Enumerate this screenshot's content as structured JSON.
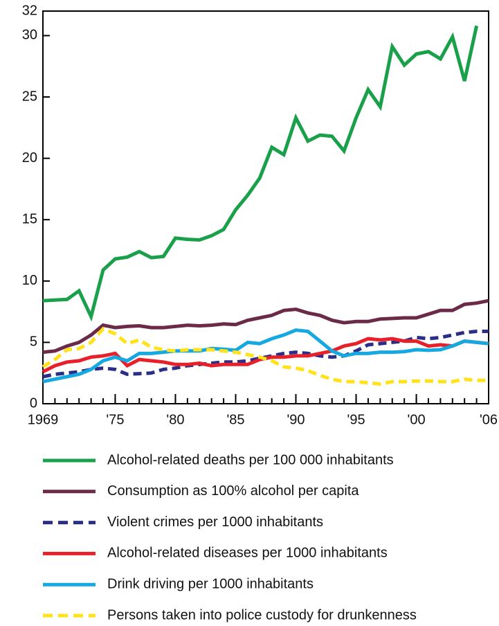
{
  "chart_data": {
    "type": "line",
    "x": [
      1969,
      1970,
      1971,
      1972,
      1973,
      1974,
      1975,
      1976,
      1977,
      1978,
      1979,
      1980,
      1981,
      1982,
      1983,
      1984,
      1985,
      1986,
      1987,
      1988,
      1989,
      1990,
      1991,
      1992,
      1993,
      1994,
      1995,
      1996,
      1997,
      1998,
      1999,
      2000,
      2001,
      2002,
      2003,
      2004,
      2005,
      2006
    ],
    "xlim": [
      1969,
      2006
    ],
    "xticks": [
      1969,
      {
        "value": 1975,
        "label": "'75"
      },
      {
        "value": 1980,
        "label": "'80"
      },
      {
        "value": 1985,
        "label": "'85"
      },
      {
        "value": 1990,
        "label": "'90"
      },
      {
        "value": 1995,
        "label": "'95"
      },
      {
        "value": 2000,
        "label": "'00"
      },
      {
        "value": 2006,
        "label": "'06"
      }
    ],
    "ylim": [
      0,
      32
    ],
    "yticks": [
      0,
      5,
      10,
      15,
      20,
      25,
      30,
      32
    ],
    "series": [
      {
        "name": "Alcohol-related deaths per 100 000 inhabitants",
        "color": "#1aa04a",
        "dashed": false,
        "values": [
          8.4,
          8.45,
          8.5,
          9.2,
          7.1,
          10.9,
          11.8,
          11.95,
          12.4,
          11.9,
          12.0,
          13.5,
          13.4,
          13.35,
          13.7,
          14.2,
          15.8,
          17.0,
          18.4,
          20.9,
          20.3,
          23.3,
          21.4,
          21.9,
          21.8,
          20.6,
          23.3,
          25.6,
          24.2,
          29.1,
          27.6,
          28.5,
          28.7,
          28.1,
          29.9,
          26.3,
          30.8,
          null
        ]
      },
      {
        "name": "Consumption as 100% alcohol per capita",
        "color": "#6a2a48",
        "dashed": false,
        "values": [
          4.2,
          4.3,
          4.7,
          5.0,
          5.6,
          6.4,
          6.2,
          6.3,
          6.35,
          6.2,
          6.2,
          6.3,
          6.4,
          6.35,
          6.4,
          6.5,
          6.45,
          6.8,
          7.0,
          7.2,
          7.6,
          7.7,
          7.4,
          7.2,
          6.8,
          6.6,
          6.7,
          6.7,
          6.9,
          6.95,
          7.0,
          7.0,
          7.3,
          7.6,
          7.6,
          8.1,
          8.2,
          8.4
        ]
      },
      {
        "name": "Violent crimes per 1000 inhabitants",
        "color": "#2b2e86",
        "dashed": true,
        "values": [
          2.2,
          2.4,
          2.5,
          2.6,
          2.8,
          2.9,
          2.8,
          2.4,
          2.45,
          2.5,
          2.8,
          2.9,
          3.1,
          3.2,
          3.3,
          3.4,
          3.4,
          3.5,
          3.7,
          3.9,
          4.1,
          4.2,
          4.1,
          3.9,
          3.8,
          3.9,
          4.3,
          4.8,
          4.9,
          5.0,
          5.1,
          5.4,
          5.3,
          5.4,
          5.6,
          5.8,
          5.9,
          5.9
        ]
      },
      {
        "name": "Alcohol-related diseases per 1000 inhabitants",
        "color": "#e8202a",
        "dashed": false,
        "values": [
          2.6,
          3.1,
          3.4,
          3.5,
          3.8,
          3.9,
          4.1,
          3.1,
          3.6,
          3.5,
          3.4,
          3.2,
          3.2,
          3.3,
          3.1,
          3.2,
          3.2,
          3.2,
          3.6,
          3.8,
          3.8,
          3.9,
          3.9,
          4.1,
          4.3,
          4.7,
          4.9,
          5.3,
          5.2,
          5.3,
          5.1,
          5.1,
          4.7,
          4.8,
          4.7,
          5.1,
          5.0,
          4.9
        ]
      },
      {
        "name": "Drink driving per 1000 inhabitants",
        "color": "#16a8e0",
        "dashed": false,
        "values": [
          1.8,
          2.0,
          2.2,
          2.4,
          2.8,
          3.5,
          3.8,
          3.5,
          4.1,
          4.1,
          4.2,
          4.3,
          4.3,
          4.3,
          4.5,
          4.45,
          4.35,
          5.0,
          4.9,
          5.3,
          5.6,
          6.0,
          5.9,
          5.1,
          4.3,
          3.9,
          4.1,
          4.1,
          4.2,
          4.2,
          4.25,
          4.4,
          4.35,
          4.4,
          4.7,
          5.1,
          5.0,
          4.9
        ]
      },
      {
        "name": "Persons taken into police custody for drunkenness",
        "color": "#ffe21a",
        "dashed": true,
        "values": [
          3.0,
          3.6,
          4.4,
          4.5,
          5.0,
          6.1,
          5.7,
          4.9,
          5.2,
          4.6,
          4.4,
          4.3,
          4.4,
          4.4,
          4.4,
          4.3,
          4.2,
          4.0,
          3.8,
          3.5,
          3.0,
          2.9,
          2.7,
          2.3,
          2.0,
          1.8,
          1.8,
          1.7,
          1.6,
          1.8,
          1.8,
          1.85,
          1.85,
          1.8,
          1.8,
          2.0,
          1.9,
          1.9
        ]
      }
    ]
  }
}
